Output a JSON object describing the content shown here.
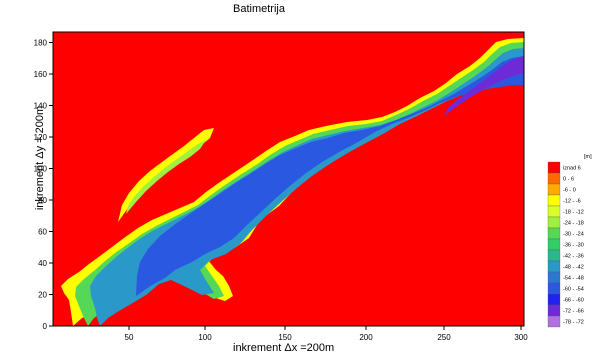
{
  "map": {
    "title": "Batimetrija",
    "x_axis_label": "inkrement Δx =200m",
    "y_axis_label": "inkrement Δy = 200m",
    "x_ticks": [
      "50",
      "100",
      "150",
      "200",
      "250",
      "300"
    ],
    "y_ticks": [
      "0",
      "20",
      "40",
      "60",
      "80",
      "100",
      "120",
      "140",
      "160",
      "180"
    ],
    "x_range": [
      0,
      305
    ],
    "y_range": [
      0,
      188
    ]
  },
  "legend": {
    "unit": "[m]",
    "labels": [
      "iznad 6",
      "0 - 6",
      "-6 - 0",
      "-12 - -6",
      "-18 - -12",
      "-24 - -18",
      "-30 - -24",
      "-36 - -30",
      "-42 - -36",
      "-48 - -42",
      "-54 - -48",
      "-60 - -54",
      "-66 - -60",
      "-72 - -66",
      "-78 - -72"
    ],
    "colors": [
      "#ff0000",
      "#ff6a00",
      "#ffaa00",
      "#ffff00",
      "#d8ff28",
      "#a0f040",
      "#55d855",
      "#33cc66",
      "#2ab890",
      "#2a98c8",
      "#2a78d0",
      "#2a58e0",
      "#2222f0",
      "#6f2ad8",
      "#b070e0"
    ]
  }
}
